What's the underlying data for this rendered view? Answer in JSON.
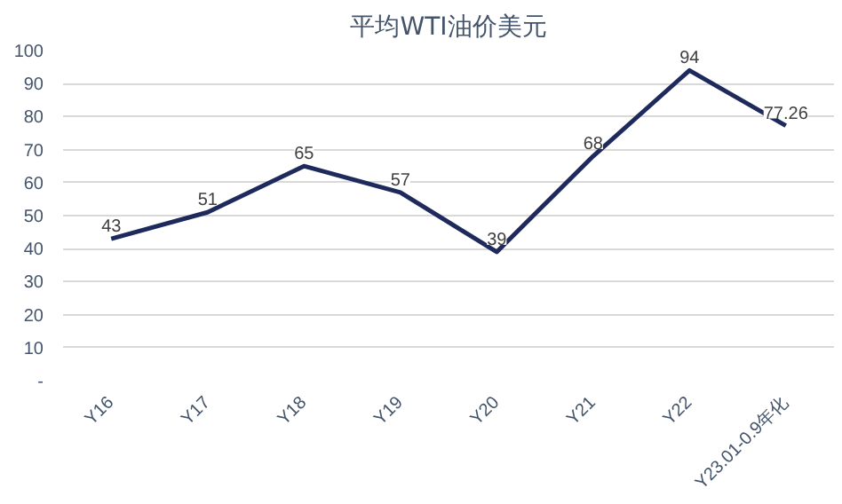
{
  "chart_data": {
    "type": "line",
    "title": "平均WTI油价美元",
    "categories": [
      "Y16",
      "Y17",
      "Y18",
      "Y19",
      "Y20",
      "Y21",
      "Y22",
      "Y23.01-0.9年化"
    ],
    "series": [
      {
        "color": "#1f2a5c",
        "values": [
          43,
          51,
          65,
          57,
          39,
          68,
          94,
          77.26
        ]
      }
    ],
    "ylim": [
      0,
      100
    ],
    "yticks": [
      {
        "value": 0,
        "label": "-"
      },
      10,
      20,
      30,
      40,
      50,
      60,
      70,
      80,
      90,
      100
    ],
    "grid": "y",
    "data_labels": true,
    "marker": "none",
    "line_style": "solid"
  }
}
